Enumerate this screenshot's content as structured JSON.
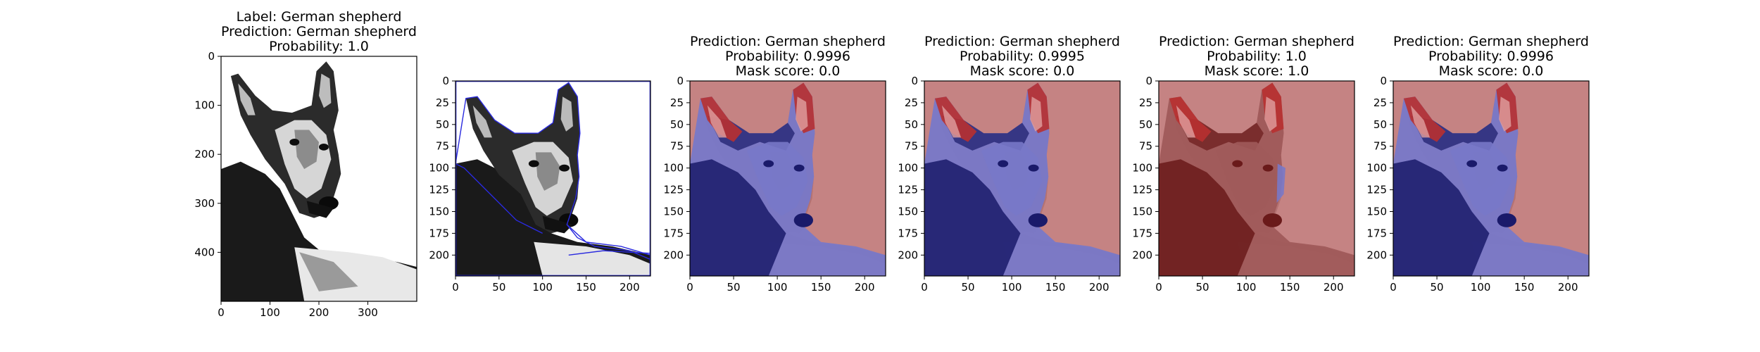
{
  "figure": {
    "panels": [
      {
        "id": "original",
        "title_lines": [
          "Label: German shepherd",
          "Prediction: German shepherd",
          "Probability: 1.0"
        ],
        "image": "german-shepherd-original",
        "xlim": [
          0,
          400
        ],
        "ylim": [
          500,
          0
        ],
        "xticks": [
          0,
          100,
          200,
          300
        ],
        "yticks": [
          0,
          100,
          200,
          300,
          400
        ],
        "overlay": "none"
      },
      {
        "id": "segments",
        "title_lines": [],
        "image": "german-shepherd-crop-with-segment-boundaries",
        "xlim": [
          0,
          224
        ],
        "ylim": [
          224,
          0
        ],
        "xticks": [
          0,
          50,
          100,
          150,
          200
        ],
        "yticks": [
          0,
          25,
          50,
          75,
          100,
          125,
          150,
          175,
          200
        ],
        "overlay": "boundaries",
        "boundary_color": "#2a2adf"
      },
      {
        "id": "mask-1",
        "title_lines": [
          "Prediction: German shepherd",
          "Probability: 0.9996",
          "Mask score: 0.0"
        ],
        "image": "german-shepherd-mask-overlay",
        "xlim": [
          0,
          224
        ],
        "ylim": [
          224,
          0
        ],
        "xticks": [
          0,
          50,
          100,
          150,
          200
        ],
        "yticks": [
          0,
          25,
          50,
          75,
          100,
          125,
          150,
          175,
          200
        ],
        "overlay": "mask-blue-body"
      },
      {
        "id": "mask-2",
        "title_lines": [
          "Prediction: German shepherd",
          "Probability: 0.9995",
          "Mask score: 0.0"
        ],
        "image": "german-shepherd-mask-overlay",
        "xlim": [
          0,
          224
        ],
        "ylim": [
          224,
          0
        ],
        "xticks": [
          0,
          50,
          100,
          150,
          200
        ],
        "yticks": [
          0,
          25,
          50,
          75,
          100,
          125,
          150,
          175,
          200
        ],
        "overlay": "mask-blue-body"
      },
      {
        "id": "mask-3",
        "title_lines": [
          "Prediction: German shepherd",
          "Probability: 1.0",
          "Mask score: 1.0"
        ],
        "image": "german-shepherd-mask-overlay",
        "xlim": [
          0,
          224
        ],
        "ylim": [
          224,
          0
        ],
        "xticks": [
          0,
          50,
          100,
          150,
          200
        ],
        "yticks": [
          0,
          25,
          50,
          75,
          100,
          125,
          150,
          175,
          200
        ],
        "overlay": "mask-red-body"
      },
      {
        "id": "mask-4",
        "title_lines": [
          "Prediction: German shepherd",
          "Probability: 0.9996",
          "Mask score: 0.0"
        ],
        "image": "german-shepherd-mask-overlay",
        "xlim": [
          0,
          224
        ],
        "ylim": [
          224,
          0
        ],
        "xticks": [
          0,
          50,
          100,
          150,
          200
        ],
        "yticks": [
          0,
          25,
          50,
          75,
          100,
          125,
          150,
          175,
          200
        ],
        "overlay": "mask-blue-body"
      }
    ],
    "colors": {
      "mask_red": "#c07878",
      "mask_blue": "#7878c8",
      "mask_dark_red": "#6a1a1a",
      "mask_dark_blue": "#1a1a6a",
      "mask_bright_red": "#b83030"
    }
  },
  "chart_data": {
    "type": "heatmap",
    "panels": [
      {
        "title": "Label: German shepherd / Prediction: German shepherd / Probability: 1.0",
        "xlim": [
          0,
          400
        ],
        "ylim": [
          500,
          0
        ]
      },
      {
        "title": "",
        "xlim": [
          0,
          224
        ],
        "ylim": [
          224,
          0
        ]
      },
      {
        "title": "Prediction: German shepherd / Probability: 0.9996 / Mask score: 0.0",
        "probability": 0.9996,
        "mask_score": 0.0,
        "xlim": [
          0,
          224
        ],
        "ylim": [
          224,
          0
        ]
      },
      {
        "title": "Prediction: German shepherd / Probability: 0.9995 / Mask score: 0.0",
        "probability": 0.9995,
        "mask_score": 0.0,
        "xlim": [
          0,
          224
        ],
        "ylim": [
          224,
          0
        ]
      },
      {
        "title": "Prediction: German shepherd / Probability: 1.0 / Mask score: 1.0",
        "probability": 1.0,
        "mask_score": 1.0,
        "xlim": [
          0,
          224
        ],
        "ylim": [
          224,
          0
        ]
      },
      {
        "title": "Prediction: German shepherd / Probability: 0.9996 / Mask score: 0.0",
        "probability": 0.9996,
        "mask_score": 0.0,
        "xlim": [
          0,
          224
        ],
        "ylim": [
          224,
          0
        ]
      }
    ]
  }
}
